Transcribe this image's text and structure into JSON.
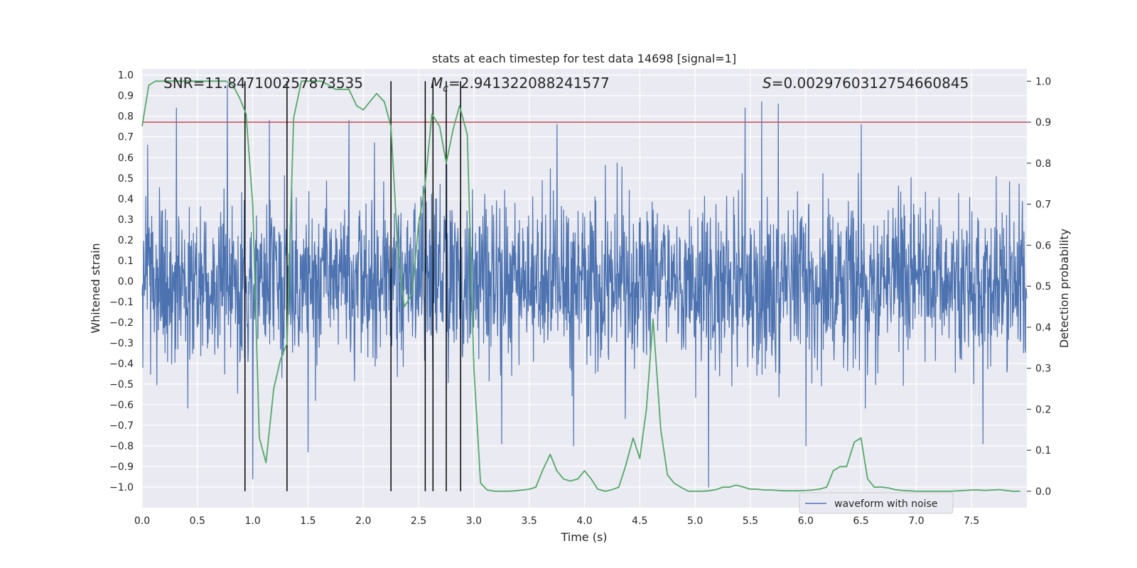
{
  "chart_data": {
    "type": "line",
    "title": "stats at each timestep for test data 14698 [signal=1]",
    "xlabel": "Time (s)",
    "ylabel": "Whitened strain",
    "ylabel_right": "Detection probability",
    "xlim": [
      0.0,
      8.0
    ],
    "ylim": [
      -1.1,
      1.03
    ],
    "ylim_right": [
      -0.04,
      1.03
    ],
    "x_ticks": [
      "0.0",
      "0.5",
      "1.0",
      "1.5",
      "2.0",
      "2.5",
      "3.0",
      "3.5",
      "4.0",
      "4.5",
      "5.0",
      "5.5",
      "6.0",
      "6.5",
      "7.0",
      "7.5"
    ],
    "y_ticks": [
      "1.0",
      "0.9",
      "0.8",
      "0.7",
      "0.6",
      "0.5",
      "0.4",
      "0.3",
      "0.2",
      "0.1",
      "0.0",
      "−0.1",
      "−0.2",
      "−0.3",
      "−0.4",
      "−0.5",
      "−0.6",
      "−0.7",
      "−0.8",
      "−0.9",
      "−1.0"
    ],
    "y_right_ticks": [
      "1.0",
      "0.9",
      "0.8",
      "0.7",
      "0.6",
      "0.5",
      "0.4",
      "0.3",
      "0.2",
      "0.1",
      "0.0"
    ],
    "grid": true,
    "legend_position": "bottom-right",
    "annotations": {
      "snr": "SNR=11.847100257873535",
      "mc_sym": "M",
      "mc_sub": "c",
      "mc_val": "=2.941322088241577",
      "s_sym": "S",
      "s_val": "=0.0029760312754660845"
    },
    "series": [
      {
        "name": "waveform with noise",
        "color": "#4c72b0",
        "description": "dense noisy whitened strain, mostly within ±0.45 with spikes to ±0.9",
        "peaks": [
          {
            "x": 0.05,
            "y": 0.66
          },
          {
            "x": 0.31,
            "y": 0.84
          },
          {
            "x": 0.77,
            "y": 0.95
          },
          {
            "x": 1.15,
            "y": 0.78
          },
          {
            "x": 1.87,
            "y": 0.78
          },
          {
            "x": 3.75,
            "y": 0.76
          },
          {
            "x": 5.45,
            "y": 0.84
          },
          {
            "x": 5.6,
            "y": 0.87
          },
          {
            "x": 5.75,
            "y": 0.86
          },
          {
            "x": 6.5,
            "y": 0.76
          },
          {
            "x": 1.0,
            "y": -0.96
          },
          {
            "x": 1.5,
            "y": -0.83
          },
          {
            "x": 3.25,
            "y": -0.79
          },
          {
            "x": 3.9,
            "y": -0.8
          },
          {
            "x": 5.12,
            "y": -1.0
          },
          {
            "x": 6.0,
            "y": -0.8
          },
          {
            "x": 7.6,
            "y": -0.79
          }
        ]
      },
      {
        "name": "",
        "color": "#55a868",
        "axis": "right",
        "x": [
          0.0,
          0.06,
          0.12,
          0.2,
          0.3,
          0.4,
          0.5,
          0.6,
          0.7,
          0.76,
          0.82,
          0.88,
          0.94,
          1.0,
          1.06,
          1.12,
          1.19,
          1.25,
          1.31,
          1.37,
          1.44,
          1.5,
          1.56,
          1.62,
          1.69,
          1.75,
          1.81,
          1.87,
          1.94,
          2.0,
          2.06,
          2.12,
          2.19,
          2.25,
          2.31,
          2.37,
          2.44,
          2.5,
          2.56,
          2.62,
          2.69,
          2.75,
          2.81,
          2.87,
          2.94,
          3.0,
          3.06,
          3.12,
          3.19,
          3.25,
          3.31,
          3.37,
          3.44,
          3.5,
          3.56,
          3.62,
          3.69,
          3.75,
          3.81,
          3.87,
          3.94,
          4.0,
          4.06,
          4.12,
          4.19,
          4.25,
          4.31,
          4.37,
          4.44,
          4.5,
          4.56,
          4.62,
          4.69,
          4.75,
          4.81,
          4.87,
          4.94,
          5.0,
          5.06,
          5.12,
          5.19,
          5.25,
          5.31,
          5.37,
          5.44,
          5.5,
          5.56,
          5.62,
          5.69,
          5.75,
          5.81,
          5.87,
          5.94,
          6.0,
          6.06,
          6.12,
          6.19,
          6.25,
          6.31,
          6.37,
          6.44,
          6.5,
          6.56,
          6.62,
          6.69,
          6.75,
          6.81,
          6.87,
          6.94,
          7.0,
          7.06,
          7.12,
          7.19,
          7.25,
          7.31,
          7.37,
          7.44,
          7.5,
          7.56,
          7.62,
          7.69,
          7.75,
          7.81,
          7.87,
          7.94
        ],
        "y": [
          0.89,
          0.99,
          1.0,
          1.0,
          1.0,
          1.0,
          1.0,
          1.0,
          1.0,
          1.0,
          0.99,
          0.96,
          0.92,
          0.7,
          0.13,
          0.07,
          0.25,
          0.32,
          0.36,
          0.91,
          1.0,
          1.0,
          1.0,
          1.0,
          0.99,
          0.98,
          0.98,
          0.98,
          0.94,
          0.93,
          0.95,
          0.97,
          0.95,
          0.89,
          0.6,
          0.45,
          0.48,
          0.65,
          0.75,
          0.92,
          0.89,
          0.8,
          0.88,
          0.94,
          0.87,
          0.3,
          0.02,
          0.003,
          0.0,
          0.0,
          0.0,
          0.001,
          0.003,
          0.005,
          0.01,
          0.05,
          0.09,
          0.05,
          0.03,
          0.025,
          0.03,
          0.05,
          0.03,
          0.005,
          0.0,
          0.004,
          0.01,
          0.06,
          0.13,
          0.08,
          0.2,
          0.42,
          0.15,
          0.04,
          0.02,
          0.01,
          0.0,
          0.0,
          0.0,
          0.001,
          0.004,
          0.01,
          0.01,
          0.015,
          0.01,
          0.005,
          0.005,
          0.003,
          0.003,
          0.002,
          0.001,
          0.001,
          0.001,
          0.002,
          0.003,
          0.005,
          0.01,
          0.05,
          0.06,
          0.06,
          0.12,
          0.13,
          0.03,
          0.01,
          0.01,
          0.008,
          0.004,
          0.002,
          0.001,
          0.0,
          0.0,
          0.0,
          0.0,
          0.0,
          0.0,
          0.001,
          0.002,
          0.003,
          0.003,
          0.002,
          0.003,
          0.004,
          0.002,
          0.0,
          0.0
        ]
      }
    ],
    "threshold": {
      "axis": "right",
      "value": 0.9,
      "color": "#c44e52"
    },
    "vlines_x": [
      0.93,
      1.31,
      2.25,
      2.56,
      2.63,
      2.75,
      2.88
    ]
  }
}
